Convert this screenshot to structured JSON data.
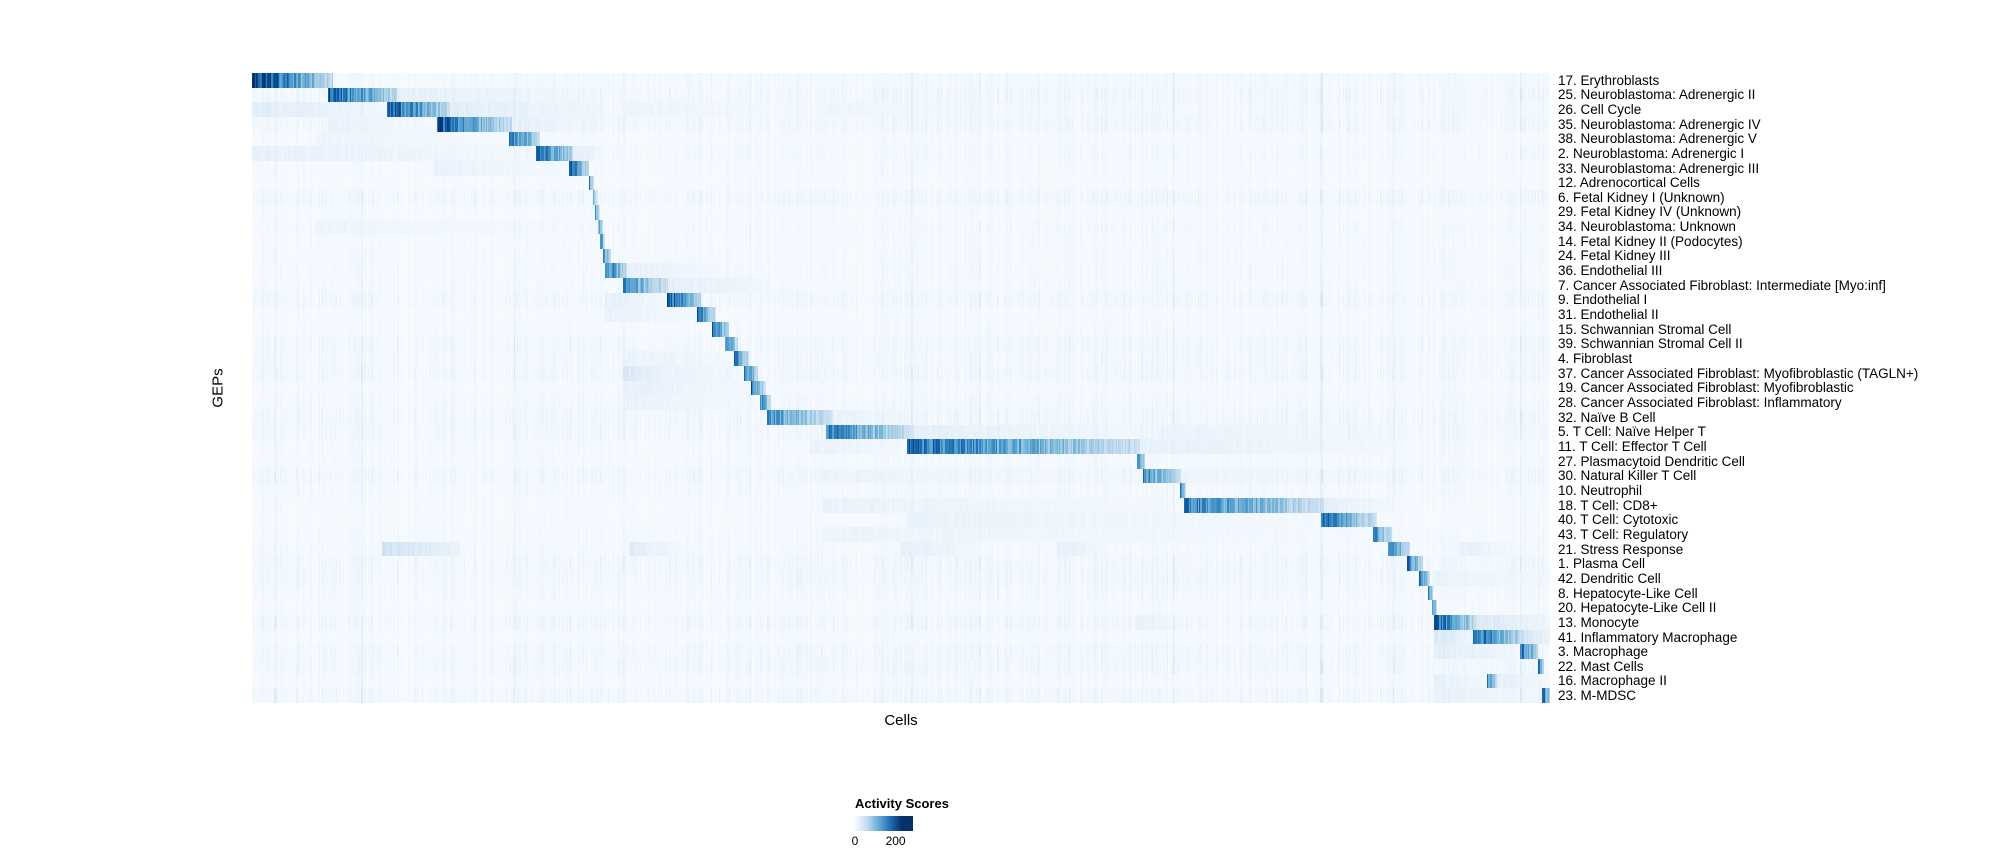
{
  "chart_data": {
    "type": "heatmap",
    "title": "",
    "xlabel": "Cells",
    "ylabel": "GEPs",
    "colormap": "Blues",
    "grid": false,
    "x_tick_labels": [],
    "colorbar": {
      "label": "Activity Scores",
      "tick_labels": [
        "0",
        "200"
      ],
      "ticks": [
        0,
        200
      ],
      "scale_max": 230
    },
    "rows": [
      {
        "label": "17. Erythroblasts",
        "blocks": [
          [
            0.0,
            0.062,
            215
          ]
        ]
      },
      {
        "label": "25. Neuroblastoma: Adrenergic II",
        "blocks": [
          [
            0.058,
            0.112,
            195
          ],
          [
            0.112,
            0.27,
            20
          ]
        ]
      },
      {
        "label": "26. Cell Cycle",
        "blocks": [
          [
            0.104,
            0.152,
            195
          ],
          [
            0.0,
            0.104,
            25
          ],
          [
            0.152,
            0.27,
            25
          ],
          [
            0.285,
            0.4,
            12
          ],
          [
            0.44,
            0.56,
            10
          ]
        ]
      },
      {
        "label": "35. Neuroblastoma: Adrenergic IV",
        "blocks": [
          [
            0.143,
            0.2,
            190
          ],
          [
            0.2,
            0.27,
            20
          ],
          [
            0.058,
            0.143,
            15
          ]
        ]
      },
      {
        "label": "38. Neuroblastoma: Adrenergic V",
        "blocks": [
          [
            0.198,
            0.222,
            180
          ],
          [
            0.05,
            0.198,
            12
          ]
        ]
      },
      {
        "label": "2. Neuroblastoma: Adrenergic I",
        "blocks": [
          [
            0.219,
            0.248,
            195
          ],
          [
            0.0,
            0.219,
            18
          ],
          [
            0.248,
            0.27,
            25
          ]
        ]
      },
      {
        "label": "33. Neuroblastoma: Adrenergic III",
        "blocks": [
          [
            0.245,
            0.259,
            185
          ],
          [
            0.14,
            0.245,
            15
          ]
        ]
      },
      {
        "label": "12. Adrenocortical Cells",
        "blocks": [
          [
            0.259,
            0.263,
            170
          ]
        ]
      },
      {
        "label": "6. Fetal Kidney I (Unknown)",
        "blocks": [
          [
            0.262,
            0.266,
            160
          ]
        ]
      },
      {
        "label": "29. Fetal Kidney IV (Unknown)",
        "blocks": [
          [
            0.264,
            0.268,
            150
          ]
        ]
      },
      {
        "label": "34. Neuroblastoma: Unknown",
        "blocks": [
          [
            0.266,
            0.27,
            150
          ],
          [
            0.05,
            0.26,
            10
          ]
        ]
      },
      {
        "label": "14. Fetal Kidney II (Podocytes)",
        "blocks": [
          [
            0.268,
            0.272,
            160
          ]
        ]
      },
      {
        "label": "24. Fetal Kidney III",
        "blocks": [
          [
            0.27,
            0.276,
            170
          ]
        ]
      },
      {
        "label": "36. Endothelial III",
        "blocks": [
          [
            0.272,
            0.289,
            180
          ],
          [
            0.289,
            0.36,
            18
          ]
        ]
      },
      {
        "label": "7. Cancer Associated Fibroblast: Intermediate [Myo:inf]",
        "blocks": [
          [
            0.286,
            0.321,
            150
          ],
          [
            0.321,
            0.4,
            20
          ]
        ]
      },
      {
        "label": "9. Endothelial I",
        "blocks": [
          [
            0.32,
            0.346,
            190
          ],
          [
            0.272,
            0.32,
            20
          ]
        ]
      },
      {
        "label": "31. Endothelial II",
        "blocks": [
          [
            0.343,
            0.357,
            180
          ],
          [
            0.272,
            0.343,
            15
          ]
        ]
      },
      {
        "label": "15. Schwannian Stromal Cell",
        "blocks": [
          [
            0.354,
            0.367,
            185
          ]
        ]
      },
      {
        "label": "39. Schwannian Stromal Cell II",
        "blocks": [
          [
            0.364,
            0.374,
            175
          ]
        ]
      },
      {
        "label": "4. Fibroblast",
        "blocks": [
          [
            0.371,
            0.383,
            185
          ],
          [
            0.286,
            0.371,
            15
          ]
        ]
      },
      {
        "label": "37. Cancer Associated Fibroblast: Myofibroblastic (TAGLN+)",
        "blocks": [
          [
            0.379,
            0.39,
            180
          ],
          [
            0.286,
            0.321,
            35
          ],
          [
            0.321,
            0.379,
            15
          ]
        ]
      },
      {
        "label": "19. Cancer Associated Fibroblast: Myofibroblastic",
        "blocks": [
          [
            0.384,
            0.396,
            175
          ],
          [
            0.286,
            0.384,
            18
          ]
        ]
      },
      {
        "label": "28. Cancer Associated Fibroblast: Inflammatory",
        "blocks": [
          [
            0.391,
            0.4,
            170
          ],
          [
            0.286,
            0.391,
            15
          ]
        ]
      },
      {
        "label": "32. Naïve B Cell",
        "blocks": [
          [
            0.397,
            0.448,
            140
          ],
          [
            0.448,
            0.52,
            15
          ]
        ]
      },
      {
        "label": "5. T Cell: Naïve Helper T",
        "blocks": [
          [
            0.443,
            0.51,
            160
          ],
          [
            0.51,
            0.69,
            20
          ],
          [
            0.7,
            0.88,
            15
          ]
        ]
      },
      {
        "label": "11. T Cell: Effector T Cell",
        "blocks": [
          [
            0.505,
            0.684,
            175
          ],
          [
            0.684,
            0.88,
            18
          ],
          [
            0.43,
            0.505,
            15
          ]
        ]
      },
      {
        "label": "27. Plasmacytoid Dendritic Cell",
        "blocks": [
          [
            0.682,
            0.688,
            160
          ]
        ]
      },
      {
        "label": "30. Natural Killer T Cell",
        "blocks": [
          [
            0.686,
            0.716,
            150
          ],
          [
            0.44,
            0.686,
            12
          ],
          [
            0.716,
            0.88,
            12
          ]
        ]
      },
      {
        "label": "10. Neutrophil",
        "blocks": [
          [
            0.715,
            0.72,
            150
          ]
        ]
      },
      {
        "label": "18. T Cell: CD8+",
        "blocks": [
          [
            0.718,
            0.826,
            165
          ],
          [
            0.44,
            0.718,
            15
          ],
          [
            0.826,
            0.88,
            20
          ]
        ]
      },
      {
        "label": "40. T Cell: Cytotoxic",
        "blocks": [
          [
            0.824,
            0.866,
            170
          ],
          [
            0.505,
            0.824,
            15
          ]
        ]
      },
      {
        "label": "43. T Cell: Regulatory",
        "blocks": [
          [
            0.863,
            0.878,
            160
          ],
          [
            0.44,
            0.863,
            12
          ]
        ]
      },
      {
        "label": "21. Stress Response",
        "blocks": [
          [
            0.875,
            0.892,
            165
          ],
          [
            0.1,
            0.16,
            45
          ],
          [
            0.29,
            0.33,
            25
          ],
          [
            0.5,
            0.56,
            20
          ],
          [
            0.62,
            0.66,
            20
          ],
          [
            0.93,
            0.97,
            20
          ]
        ]
      },
      {
        "label": "1. Plasma Cell",
        "blocks": [
          [
            0.89,
            0.902,
            170
          ]
        ]
      },
      {
        "label": "42. Dendritic Cell",
        "blocks": [
          [
            0.899,
            0.908,
            165
          ],
          [
            0.91,
            1.0,
            15
          ]
        ]
      },
      {
        "label": "8. Hepatocyte-Like Cell",
        "blocks": [
          [
            0.906,
            0.91,
            150
          ]
        ]
      },
      {
        "label": "20. Hepatocyte-Like Cell II",
        "blocks": [
          [
            0.909,
            0.913,
            150
          ]
        ]
      },
      {
        "label": "13. Monocyte",
        "blocks": [
          [
            0.911,
            0.944,
            185
          ],
          [
            0.944,
            1.0,
            30
          ],
          [
            0.68,
            0.72,
            15
          ]
        ]
      },
      {
        "label": "41. Inflammatory Macrophage",
        "blocks": [
          [
            0.941,
            0.98,
            185
          ],
          [
            0.911,
            0.941,
            35
          ],
          [
            0.98,
            1.0,
            40
          ]
        ]
      },
      {
        "label": "3. Macrophage",
        "blocks": [
          [
            0.977,
            0.991,
            190
          ],
          [
            0.911,
            0.977,
            25
          ]
        ]
      },
      {
        "label": "22. Mast Cells",
        "blocks": [
          [
            0.991,
            0.995,
            180
          ]
        ]
      },
      {
        "label": "16. Macrophage II",
        "blocks": [
          [
            0.951,
            0.959,
            170
          ],
          [
            0.911,
            0.951,
            20
          ],
          [
            0.959,
            1.0,
            20
          ]
        ]
      },
      {
        "label": "23. M-MDSC",
        "blocks": [
          [
            0.994,
            1.0,
            190
          ],
          [
            0.911,
            0.994,
            18
          ]
        ]
      }
    ]
  }
}
